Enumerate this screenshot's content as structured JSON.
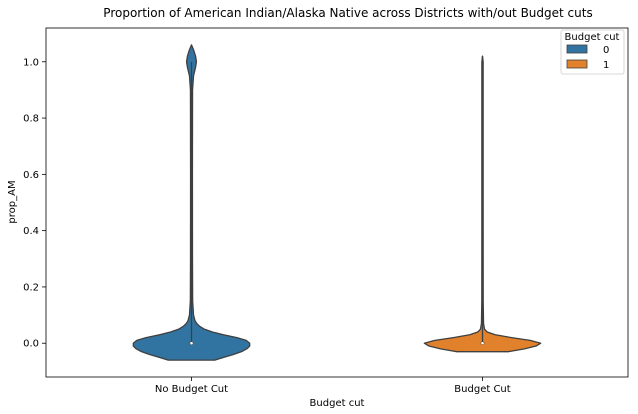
{
  "chart_data": {
    "type": "violin",
    "title": "Proportion of American Indian/Alaska Native across Districts with/out Budget cuts",
    "xlabel": "Budget cut",
    "ylabel": "prop_AM",
    "categories": [
      "No Budget Cut",
      "Budget Cut"
    ],
    "ylim": [
      -0.12,
      1.12
    ],
    "yticks": [
      0.0,
      0.2,
      0.4,
      0.6,
      0.8,
      1.0
    ],
    "ytick_labels": [
      "0.0",
      "0.2",
      "0.4",
      "0.6",
      "0.8",
      "1.0"
    ],
    "legend": {
      "title": "Budget cut",
      "placement": "top-right",
      "entries": [
        "0",
        "1"
      ]
    },
    "series": [
      {
        "name": "0",
        "category": "No Budget Cut",
        "color": "#3274a1",
        "median": 0.0,
        "q1": 0.0,
        "q3": 0.003,
        "min": 0.0,
        "max": 1.0,
        "kde_support": [
          -0.06,
          1.06
        ],
        "density_halfwidth_profile": [
          [
            -0.06,
            0.4
          ],
          [
            -0.05,
            0.56
          ],
          [
            -0.04,
            0.72
          ],
          [
            -0.03,
            0.86
          ],
          [
            -0.02,
            0.95
          ],
          [
            -0.01,
            1.0
          ],
          [
            0.0,
            1.0
          ],
          [
            0.01,
            0.94
          ],
          [
            0.02,
            0.78
          ],
          [
            0.03,
            0.55
          ],
          [
            0.04,
            0.36
          ],
          [
            0.05,
            0.22
          ],
          [
            0.06,
            0.14
          ],
          [
            0.07,
            0.09
          ],
          [
            0.08,
            0.06
          ],
          [
            0.1,
            0.035
          ],
          [
            0.15,
            0.02
          ],
          [
            0.3,
            0.017
          ],
          [
            0.6,
            0.016
          ],
          [
            0.9,
            0.018
          ],
          [
            0.95,
            0.035
          ],
          [
            0.98,
            0.07
          ],
          [
            1.0,
            0.085
          ],
          [
            1.02,
            0.07
          ],
          [
            1.04,
            0.04
          ],
          [
            1.06,
            0.0
          ]
        ]
      },
      {
        "name": "1",
        "category": "Budget Cut",
        "color": "#e1812c",
        "median": 0.0,
        "q1": 0.0,
        "q3": 0.002,
        "min": 0.0,
        "max": 1.02,
        "kde_support": [
          -0.03,
          1.02
        ],
        "density_halfwidth_profile": [
          [
            -0.03,
            0.45
          ],
          [
            -0.02,
            0.72
          ],
          [
            -0.01,
            0.92
          ],
          [
            0.0,
            1.0
          ],
          [
            0.01,
            0.82
          ],
          [
            0.02,
            0.5
          ],
          [
            0.03,
            0.22
          ],
          [
            0.04,
            0.08
          ],
          [
            0.05,
            0.035
          ],
          [
            0.07,
            0.018
          ],
          [
            0.15,
            0.012
          ],
          [
            0.5,
            0.011
          ],
          [
            0.9,
            0.011
          ],
          [
            1.0,
            0.011
          ],
          [
            1.02,
            0.0
          ]
        ]
      }
    ]
  }
}
